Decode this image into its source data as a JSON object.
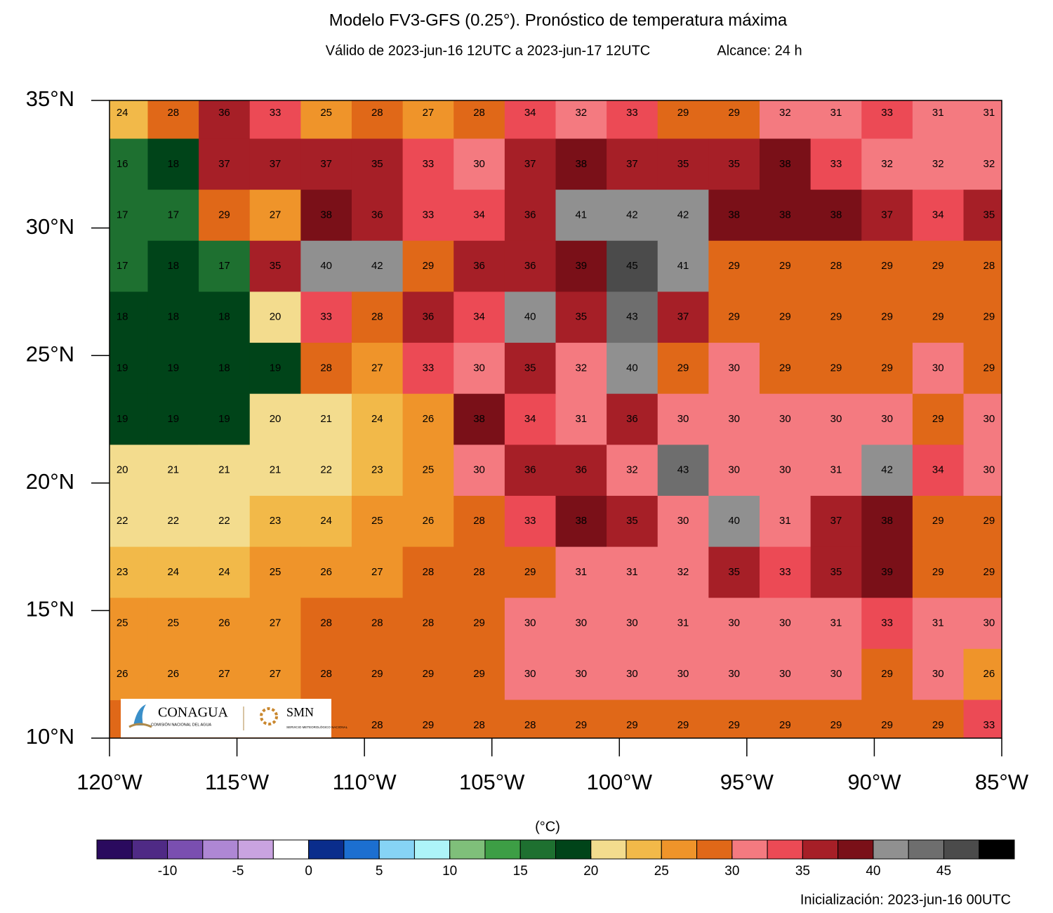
{
  "chart_data": {
    "type": "heatmap",
    "title": "Modelo FV3-GFS (0.25°). Pronóstico de temperatura máxima",
    "subtitle": "Válido de 2023-jun-16 12UTC a 2023-jun-17 12UTC",
    "lead_time": "Alcance: 24 h",
    "footer": "Inicialización: 2023-jun-16 00UTC",
    "xlim": [
      -120,
      -85
    ],
    "ylim": [
      10,
      35
    ],
    "xticks": [
      {
        "value": -120,
        "label": "120°W"
      },
      {
        "value": -115,
        "label": "115°W"
      },
      {
        "value": -110,
        "label": "110°W"
      },
      {
        "value": -105,
        "label": "105°W"
      },
      {
        "value": -100,
        "label": "100°W"
      },
      {
        "value": -95,
        "label": "95°W"
      },
      {
        "value": -90,
        "label": "90°W"
      },
      {
        "value": -85,
        "label": "85°W"
      }
    ],
    "yticks": [
      {
        "value": 10,
        "label": "10°N"
      },
      {
        "value": 15,
        "label": "15°N"
      },
      {
        "value": 20,
        "label": "20°N"
      },
      {
        "value": 25,
        "label": "25°N"
      },
      {
        "value": 30,
        "label": "30°N"
      },
      {
        "value": 35,
        "label": "35°N"
      }
    ],
    "values": [
      [
        24,
        28,
        36,
        33,
        25,
        28,
        27,
        28,
        34,
        32,
        33,
        29,
        29,
        32,
        31,
        33,
        31,
        31
      ],
      [
        16,
        18,
        37,
        37,
        37,
        35,
        33,
        30,
        37,
        38,
        37,
        35,
        35,
        38,
        33,
        32,
        32,
        32
      ],
      [
        17,
        17,
        29,
        27,
        38,
        36,
        33,
        34,
        36,
        41,
        42,
        42,
        38,
        38,
        38,
        37,
        34,
        35
      ],
      [
        17,
        18,
        17,
        35,
        40,
        42,
        29,
        36,
        36,
        39,
        45,
        41,
        29,
        29,
        28,
        29,
        29,
        28
      ],
      [
        18,
        18,
        18,
        20,
        33,
        28,
        36,
        34,
        40,
        35,
        43,
        37,
        29,
        29,
        29,
        29,
        29,
        29
      ],
      [
        19,
        19,
        18,
        19,
        28,
        27,
        33,
        30,
        35,
        32,
        40,
        29,
        30,
        29,
        29,
        29,
        30,
        29
      ],
      [
        19,
        19,
        19,
        20,
        21,
        24,
        26,
        38,
        34,
        31,
        36,
        30,
        30,
        30,
        30,
        30,
        29,
        30
      ],
      [
        20,
        21,
        21,
        21,
        22,
        23,
        25,
        30,
        36,
        36,
        32,
        43,
        30,
        30,
        31,
        42,
        34,
        30
      ],
      [
        22,
        22,
        22,
        23,
        24,
        25,
        26,
        28,
        33,
        38,
        35,
        30,
        40,
        31,
        37,
        38,
        29,
        29
      ],
      [
        23,
        24,
        24,
        25,
        26,
        27,
        28,
        28,
        29,
        31,
        31,
        32,
        35,
        33,
        35,
        39,
        29,
        29
      ],
      [
        25,
        25,
        26,
        27,
        28,
        28,
        28,
        29,
        30,
        30,
        30,
        31,
        30,
        30,
        31,
        33,
        31,
        30
      ],
      [
        26,
        26,
        27,
        27,
        28,
        29,
        29,
        29,
        30,
        30,
        30,
        30,
        30,
        30,
        30,
        29,
        30,
        26
      ],
      [
        null,
        null,
        null,
        null,
        null,
        28,
        29,
        28,
        28,
        29,
        29,
        29,
        29,
        29,
        29,
        29,
        29,
        33
      ]
    ],
    "colorbar": {
      "unit": "(°C)",
      "lim": [
        -15,
        50
      ],
      "ticks": [
        -10,
        -5,
        0,
        5,
        10,
        15,
        20,
        25,
        30,
        35,
        40,
        45
      ],
      "colors": [
        "#2a0a5e",
        "#4f2a85",
        "#7a4fb0",
        "#ae87d4",
        "#c9a3e0",
        "#ffffff",
        "#0a2d8c",
        "#1c6fd0",
        "#86d3f5",
        "#adf4f8",
        "#7fbf7a",
        "#3d9e45",
        "#1e7030",
        "#004419",
        "#f3dc8e",
        "#f2b949",
        "#ef942a",
        "#e06818",
        "#f47a80",
        "#ec4a55",
        "#a61f27",
        "#7a1018",
        "#909090",
        "#6e6e6e",
        "#4b4b4b",
        "#000000"
      ]
    }
  },
  "logo": {
    "agency": "CONAGUA",
    "agency_full": "COMISIÓN NACIONAL DEL AGUA",
    "service": "SMN",
    "service_full": "SERVICIO METEOROLÓGICO NACIONAL"
  }
}
